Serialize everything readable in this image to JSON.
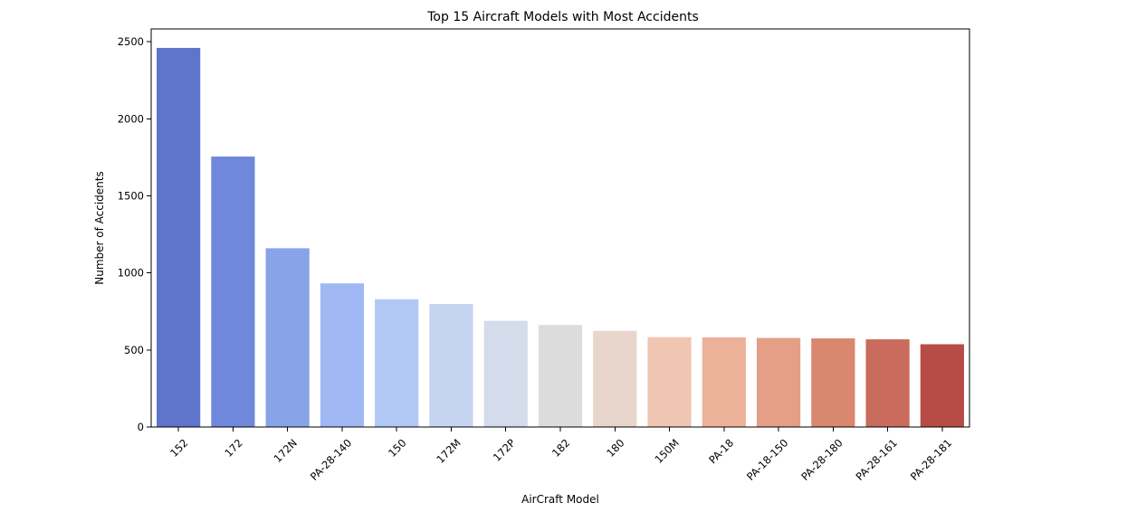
{
  "chart_data": {
    "type": "bar",
    "title": "Top 15 Aircraft Models with Most Accidents",
    "xlabel": "AirCraft Model",
    "ylabel": "Number of Accidents",
    "categories": [
      "152",
      "172",
      "172N",
      "PA-28-140",
      "150",
      "172M",
      "172P",
      "182",
      "180",
      "150M",
      "PA-18",
      "PA-18-150",
      "PA-28-180",
      "PA-28-161",
      "PA-28-181"
    ],
    "values": [
      2460,
      1755,
      1160,
      932,
      829,
      798,
      689,
      662,
      624,
      583,
      582,
      578,
      575,
      569,
      537
    ],
    "colors": [
      "#5f74cb",
      "#7088db",
      "#89a3e8",
      "#9fb8f4",
      "#b1c8f5",
      "#c5d4f1",
      "#d4dbea",
      "#dcdcdc",
      "#e8d5cb",
      "#eec6b2",
      "#ecb299",
      "#e49f86",
      "#da8770",
      "#ca6c5d",
      "#b74c47"
    ],
    "yticks": [
      0,
      500,
      1000,
      1500,
      2000,
      2500
    ],
    "ylim": [
      0,
      2583
    ],
    "grid": false,
    "legend": "none"
  }
}
